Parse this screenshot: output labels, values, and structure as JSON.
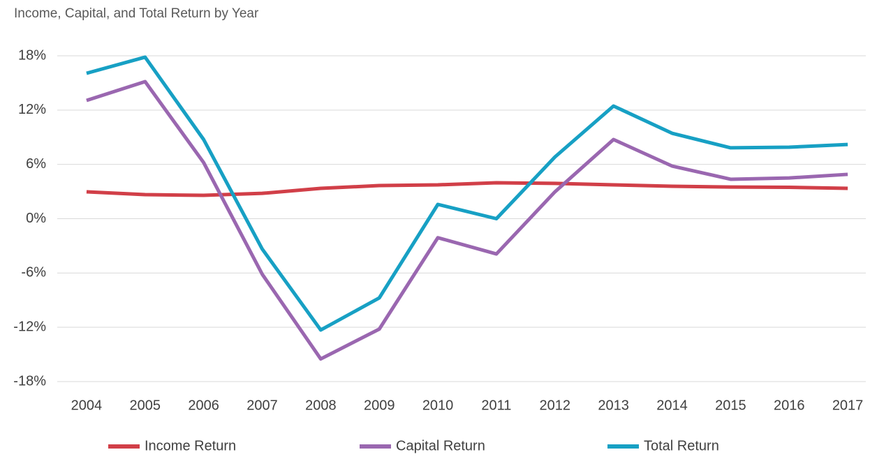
{
  "chart_data": {
    "type": "line",
    "title": "Income, Capital, and Total Return by Year",
    "categories": [
      "2004",
      "2005",
      "2006",
      "2007",
      "2008",
      "2009",
      "2010",
      "2011",
      "2012",
      "2013",
      "2014",
      "2015",
      "2016",
      "2017"
    ],
    "series": [
      {
        "name": "Income Return",
        "color": "#d13f48",
        "values": [
          2.97,
          2.66,
          2.58,
          2.8,
          3.35,
          3.66,
          3.74,
          3.97,
          3.9,
          3.74,
          3.58,
          3.5,
          3.47,
          3.35
        ]
      },
      {
        "name": "Capital Return",
        "color": "#9a67b0",
        "values": [
          13.07,
          15.15,
          6.2,
          -6.13,
          -15.5,
          -12.2,
          -2.1,
          -3.9,
          2.97,
          8.75,
          5.82,
          4.36,
          4.5,
          4.9
        ]
      },
      {
        "name": "Total Return",
        "color": "#17a0c4",
        "values": [
          16.07,
          17.85,
          8.75,
          -3.35,
          -12.3,
          -8.75,
          1.58,
          0,
          6.82,
          12.45,
          9.44,
          7.83,
          7.9,
          8.2
        ]
      }
    ],
    "ylim": [
      -18,
      18
    ],
    "yticks": [
      {
        "value": -18,
        "label": "-18%"
      },
      {
        "value": -12,
        "label": "-12%"
      },
      {
        "value": -6,
        "label": "-6%"
      },
      {
        "value": 0,
        "label": "0%"
      },
      {
        "value": 6,
        "label": "6%"
      },
      {
        "value": 12,
        "label": "12%"
      },
      {
        "value": 18,
        "label": "18%"
      }
    ],
    "grid": true,
    "legend": "bottom"
  }
}
